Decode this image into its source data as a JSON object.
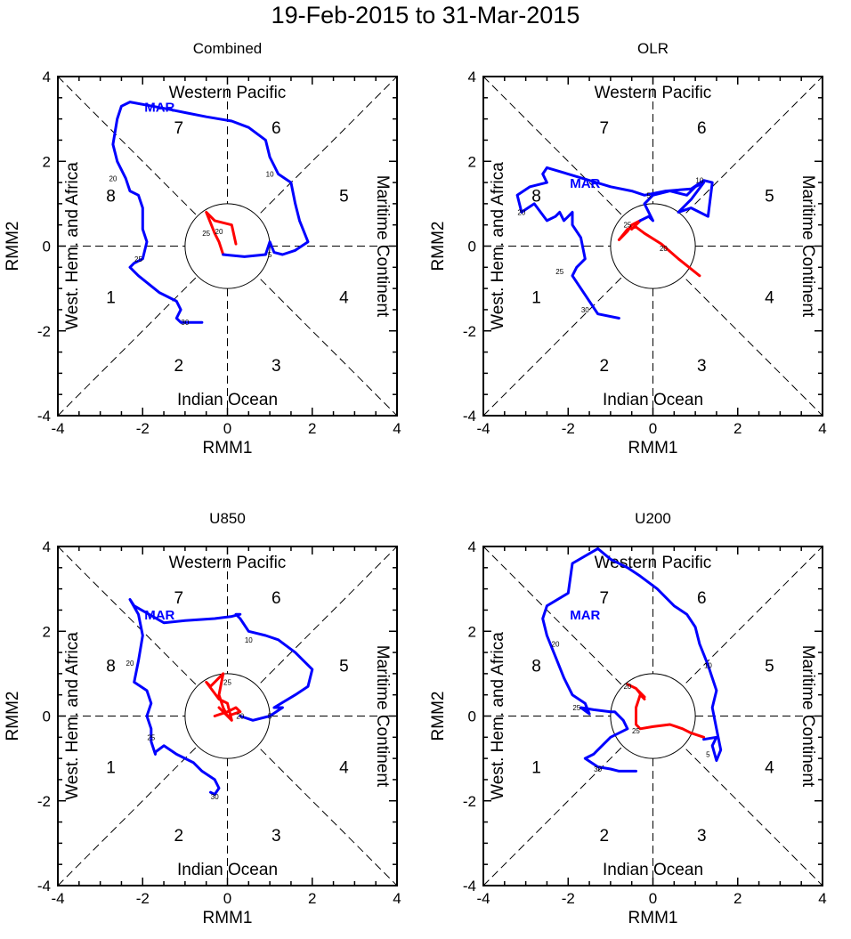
{
  "figure_title": "19-Feb-2015 to 31-Mar-2015",
  "colors": {
    "feb": "#ff0000",
    "mar": "#0000ff",
    "axes": "#000000"
  },
  "chart_data": [
    {
      "type": "line",
      "title": "Combined",
      "xlabel": "RMM1",
      "ylabel": "RMM2",
      "xlim": [
        -4,
        4
      ],
      "ylim": [
        -4,
        4
      ],
      "ticks": [
        "-4",
        "-2",
        "0",
        "2",
        "4"
      ],
      "regions": [
        "Western Pacific",
        "Indian Ocean",
        "West. Hem. and Africa",
        "Maritime Continent"
      ],
      "phases": [
        "1",
        "2",
        "3",
        "4",
        "5",
        "6",
        "7",
        "8"
      ],
      "month_label": "MAR",
      "series": [
        {
          "name": "FEB",
          "color": "#ff0000",
          "x": [
            0.2,
            0.1,
            -0.3,
            -0.4,
            -0.5,
            -0.4,
            -0.3,
            -0.2,
            -0.1
          ],
          "y": [
            0.05,
            0.5,
            0.6,
            0.7,
            0.8,
            0.55,
            0.3,
            0.1,
            -0.2
          ]
        },
        {
          "name": "MAR",
          "color": "#0000ff",
          "x": [
            -0.1,
            0.4,
            0.9,
            1.0,
            1.1,
            1.3,
            1.6,
            1.9,
            1.7,
            1.6,
            1.5,
            1.2,
            1.1,
            1.0,
            0.9,
            0.5,
            0.1,
            -0.5,
            -1.0,
            -1.5,
            -2.3,
            -2.5,
            -2.6,
            -2.7,
            -2.6,
            -2.4,
            -2.3,
            -2.1,
            -2.0,
            -2.0,
            -1.9,
            -2.0,
            -2.2,
            -2.3,
            -2.2,
            -2.1,
            -1.6,
            -1.2,
            -1.1,
            -1.2,
            -1.1,
            -0.8,
            -0.7,
            -0.6
          ],
          "y": [
            -0.2,
            -0.25,
            -0.2,
            0.1,
            -0.15,
            -0.2,
            -0.1,
            0.1,
            0.6,
            1.0,
            1.5,
            1.7,
            1.9,
            2.1,
            2.5,
            2.8,
            2.95,
            3.05,
            3.15,
            3.25,
            3.4,
            3.3,
            3.0,
            2.4,
            2.0,
            1.6,
            1.3,
            1.2,
            0.9,
            0.4,
            0.1,
            -0.3,
            -0.4,
            -0.5,
            -0.6,
            -0.7,
            -1.1,
            -1.3,
            -1.5,
            -1.7,
            -1.8,
            -1.8,
            -1.8,
            -1.8
          ]
        }
      ],
      "day_labels": [
        {
          "text": "5",
          "x": 1.0,
          "y": -0.2
        },
        {
          "text": "10",
          "x": 1.0,
          "y": 1.7
        },
        {
          "text": "20",
          "x": -2.7,
          "y": 1.6
        },
        {
          "text": "25",
          "x": -2.1,
          "y": -0.3
        },
        {
          "text": "30",
          "x": -1.0,
          "y": -1.8
        },
        {
          "text": "20",
          "x": -0.2,
          "y": 0.35
        },
        {
          "text": "25",
          "x": -0.5,
          "y": 0.3
        }
      ],
      "month_label_pos": {
        "x": -1.6,
        "y": 3.3
      }
    },
    {
      "type": "line",
      "title": "OLR",
      "xlabel": "RMM1",
      "ylabel": "RMM2",
      "xlim": [
        -4,
        4
      ],
      "ylim": [
        -4,
        4
      ],
      "ticks": [
        "-4",
        "-2",
        "0",
        "2",
        "4"
      ],
      "regions": [
        "Western Pacific",
        "Indian Ocean",
        "West. Hem. and Africa",
        "Maritime Continent"
      ],
      "phases": [
        "1",
        "2",
        "3",
        "4",
        "5",
        "6",
        "7",
        "8"
      ],
      "month_label": "MAR",
      "series": [
        {
          "name": "FEB",
          "color": "#ff0000",
          "x": [
            1.1,
            0.6,
            0.2,
            -0.2,
            -0.4,
            -0.6,
            -0.8,
            -0.6,
            -0.5,
            -0.3,
            -0.5
          ],
          "y": [
            -0.7,
            -0.3,
            0.05,
            0.3,
            0.45,
            0.4,
            0.15,
            0.35,
            0.5,
            0.6,
            0.4
          ]
        },
        {
          "name": "MAR",
          "color": "#0000ff",
          "x": [
            -0.3,
            -0.1,
            0.0,
            -0.2,
            0.0,
            0.4,
            0.8,
            1.0,
            1.2,
            0.9,
            0.6,
            0.9,
            1.3,
            1.4,
            1.2,
            0.9,
            0.3,
            -0.2,
            -0.5,
            -1.0,
            -2.5,
            -2.6,
            -2.5,
            -2.9,
            -3.2,
            -3.1,
            -2.8,
            -2.5,
            -2.3,
            -2.2,
            -2.1,
            -2.0,
            -1.9,
            -1.9,
            -1.7,
            -1.6,
            -1.8,
            -1.9,
            -1.7,
            -1.5,
            -1.3,
            -0.8
          ],
          "y": [
            0.6,
            0.7,
            0.6,
            1.0,
            1.2,
            1.3,
            1.2,
            1.4,
            1.5,
            1.1,
            0.8,
            0.9,
            0.7,
            1.5,
            1.55,
            1.35,
            1.3,
            1.2,
            1.3,
            1.4,
            1.85,
            1.7,
            1.5,
            1.4,
            1.2,
            0.8,
            1.0,
            0.6,
            0.7,
            0.8,
            0.6,
            0.7,
            0.8,
            0.5,
            0.2,
            -0.3,
            -0.5,
            -0.7,
            -1.0,
            -1.3,
            -1.6,
            -1.7
          ]
        }
      ],
      "day_labels": [
        {
          "text": "5",
          "x": -0.1,
          "y": 1.2
        },
        {
          "text": "10",
          "x": 1.1,
          "y": 1.55
        },
        {
          "text": "20",
          "x": -3.1,
          "y": 0.8
        },
        {
          "text": "25",
          "x": -2.2,
          "y": -0.6
        },
        {
          "text": "30",
          "x": -1.6,
          "y": -1.5
        },
        {
          "text": "20",
          "x": 0.25,
          "y": -0.05
        },
        {
          "text": "25",
          "x": -0.6,
          "y": 0.5
        }
      ],
      "month_label_pos": {
        "x": -1.6,
        "y": 1.5
      }
    },
    {
      "type": "line",
      "title": "U850",
      "xlabel": "RMM1",
      "ylabel": "RMM2",
      "xlim": [
        -4,
        4
      ],
      "ylim": [
        -4,
        4
      ],
      "ticks": [
        "-4",
        "-2",
        "0",
        "2",
        "4"
      ],
      "regions": [
        "Western Pacific",
        "Indian Ocean",
        "West. Hem. and Africa",
        "Maritime Continent"
      ],
      "phases": [
        "1",
        "2",
        "3",
        "4",
        "5",
        "6",
        "7",
        "8"
      ],
      "month_label": "MAR",
      "series": [
        {
          "name": "FEB",
          "color": "#ff0000",
          "x": [
            -0.3,
            0.0,
            0.2,
            0.3,
            0.0,
            0.1,
            0.0,
            -0.2,
            -0.5,
            -0.4,
            -0.2,
            -0.1,
            -0.2,
            -0.1,
            0.0,
            -0.2
          ],
          "y": [
            0.0,
            0.1,
            0.2,
            0.1,
            0.0,
            -0.1,
            0.3,
            0.4,
            0.8,
            0.7,
            0.9,
            1.0,
            0.5,
            0.2,
            0.0,
            0.2
          ]
        },
        {
          "name": "MAR",
          "color": "#0000ff",
          "x": [
            0.3,
            0.6,
            1.0,
            1.3,
            1.1,
            1.6,
            1.9,
            2.0,
            1.8,
            1.6,
            1.2,
            0.9,
            0.5,
            0.3,
            0.2,
            0.3,
            0.1,
            -0.3,
            -1.0,
            -1.5,
            -2.2,
            -2.3,
            -2.1,
            -2.0,
            -2.1,
            -2.2,
            -1.9,
            -1.8,
            -1.9,
            -1.8,
            -1.8,
            -1.7,
            -1.7,
            -1.5,
            -1.2,
            -0.8,
            -0.6,
            -0.3,
            -0.2,
            -0.3,
            -0.4
          ],
          "y": [
            0.0,
            -0.1,
            0.0,
            0.2,
            0.2,
            0.5,
            0.7,
            1.1,
            1.3,
            1.5,
            1.8,
            1.9,
            2.0,
            2.3,
            2.4,
            2.4,
            2.35,
            2.3,
            2.25,
            2.2,
            2.6,
            2.75,
            2.4,
            1.9,
            1.3,
            0.8,
            0.6,
            0.3,
            0.0,
            -0.3,
            -0.6,
            -0.9,
            -0.85,
            -0.7,
            -0.9,
            -1.1,
            -1.3,
            -1.5,
            -1.7,
            -1.85,
            -1.8
          ]
        }
      ],
      "day_labels": [
        {
          "text": "5",
          "x": 1.0,
          "y": 0.0
        },
        {
          "text": "10",
          "x": 0.5,
          "y": 1.8
        },
        {
          "text": "20",
          "x": -2.3,
          "y": 1.25
        },
        {
          "text": "25",
          "x": -1.8,
          "y": -0.5
        },
        {
          "text": "30",
          "x": -0.3,
          "y": -1.9
        },
        {
          "text": "20",
          "x": 0.3,
          "y": 0.0
        },
        {
          "text": "25",
          "x": 0.0,
          "y": 0.8
        }
      ],
      "month_label_pos": {
        "x": -1.6,
        "y": 2.4
      }
    },
    {
      "type": "line",
      "title": "U200",
      "xlabel": "RMM1",
      "ylabel": "RMM2",
      "xlim": [
        -4,
        4
      ],
      "ylim": [
        -4,
        4
      ],
      "ticks": [
        "-4",
        "-2",
        "0",
        "2",
        "4"
      ],
      "regions": [
        "Western Pacific",
        "Indian Ocean",
        "West. Hem. and Africa",
        "Maritime Continent"
      ],
      "phases": [
        "1",
        "2",
        "3",
        "4",
        "5",
        "6",
        "7",
        "8"
      ],
      "month_label": "MAR",
      "series": [
        {
          "name": "FEB",
          "color": "#ff0000",
          "x": [
            1.2,
            0.9,
            0.7,
            0.4,
            0.0,
            -0.3,
            -0.4,
            -0.4,
            -0.3,
            -0.2,
            -0.4,
            -0.6,
            -0.4,
            -0.2
          ],
          "y": [
            -0.5,
            -0.4,
            -0.3,
            -0.2,
            -0.25,
            -0.3,
            -0.2,
            0.2,
            0.5,
            0.4,
            0.65,
            0.75,
            0.65,
            0.45
          ]
        },
        {
          "name": "MAR",
          "color": "#0000ff",
          "x": [
            1.2,
            1.5,
            1.4,
            1.5,
            1.6,
            1.5,
            1.4,
            1.5,
            1.3,
            1.1,
            1.0,
            0.8,
            0.5,
            0.1,
            -0.3,
            -0.6,
            -1.0,
            -1.3,
            -1.9,
            -2.0,
            -2.5,
            -2.6,
            -2.5,
            -2.3,
            -2.1,
            -1.9,
            -1.6,
            -1.5,
            -1.7,
            -1.4,
            -1.0,
            -0.9,
            -0.7,
            -0.6,
            -1.0,
            -1.3,
            -1.4,
            -1.6,
            -1.3,
            -1.0,
            -0.8,
            -0.4
          ],
          "y": [
            -0.55,
            -0.5,
            -0.7,
            -1.05,
            -0.8,
            -0.3,
            0.2,
            0.6,
            1.2,
            1.7,
            2.1,
            2.4,
            2.6,
            3.0,
            3.3,
            3.5,
            3.7,
            3.95,
            3.6,
            2.9,
            2.6,
            2.3,
            1.9,
            1.4,
            0.9,
            0.5,
            0.3,
            0.05,
            0.2,
            0.15,
            0.1,
            0.1,
            -0.1,
            -0.3,
            -0.5,
            -0.8,
            -0.9,
            -1.0,
            -1.2,
            -1.25,
            -1.3,
            -1.3
          ]
        }
      ],
      "day_labels": [
        {
          "text": "5",
          "x": 1.3,
          "y": -0.9
        },
        {
          "text": "10",
          "x": 1.3,
          "y": 1.2
        },
        {
          "text": "20",
          "x": -2.3,
          "y": 1.7
        },
        {
          "text": "25",
          "x": -1.8,
          "y": 0.2
        },
        {
          "text": "30",
          "x": -1.3,
          "y": -1.25
        },
        {
          "text": "20",
          "x": -0.6,
          "y": 0.7
        },
        {
          "text": "25",
          "x": -0.4,
          "y": -0.35
        }
      ],
      "month_label_pos": {
        "x": -1.6,
        "y": 2.4
      }
    }
  ]
}
